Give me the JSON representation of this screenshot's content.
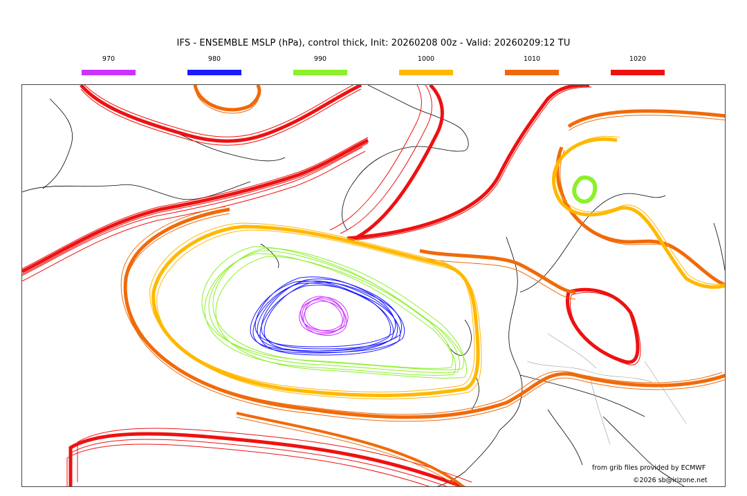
{
  "title": "IFS - ENSEMBLE MSLP (hPa), control thick, Init: 20260208 00z - Valid: 20260209:12 TU",
  "legend": [
    {
      "label": "970",
      "color": "#cc33ff"
    },
    {
      "label": "980",
      "color": "#1a1aff"
    },
    {
      "label": "990",
      "color": "#8cf02a"
    },
    {
      "label": "1000",
      "color": "#ffb800"
    },
    {
      "label": "1010",
      "color": "#f06a0a"
    },
    {
      "label": "1020",
      "color": "#ee1111"
    }
  ],
  "credits": {
    "source": "from grib files provided by ECMWF",
    "copyright": "©2026 sb@irizone.net"
  }
}
